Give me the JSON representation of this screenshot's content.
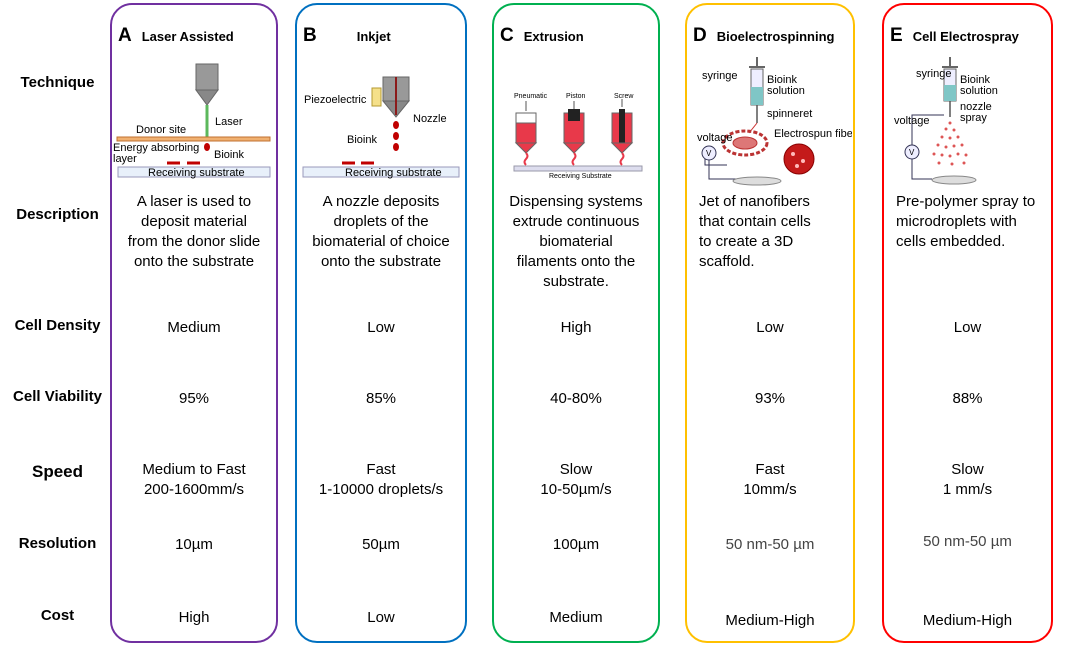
{
  "row_labels": [
    "Technique",
    "Description",
    "Cell Density",
    "Cell Viability",
    "Speed",
    "Resolution",
    "Cost"
  ],
  "columns": [
    {
      "letter": "A",
      "title": "Laser Assisted",
      "border_color": "#7030a0",
      "illustration": [
        "Donor site",
        "Laser",
        "Energy absorbing",
        "layer",
        "Bioink",
        "Receiving substrate"
      ],
      "description": [
        "A laser is used to",
        "deposit material",
        "from the donor slide",
        "onto the substrate"
      ],
      "cell_density": "Medium",
      "cell_viability": "95%",
      "speed": [
        "Medium to Fast",
        "200-1600mm/s"
      ],
      "resolution": "10µm",
      "cost": "High"
    },
    {
      "letter": "B",
      "title": "Inkjet",
      "border_color": "#0070c0",
      "illustration": [
        "Piezoelectric",
        "Nozzle",
        "Bioink",
        "Receiving substrate"
      ],
      "description": [
        "A nozzle deposits",
        "droplets of the",
        "biomaterial of choice",
        "onto the substrate"
      ],
      "cell_density": "Low",
      "cell_viability": "85%",
      "speed": [
        "Fast",
        "1-10000 droplets/s"
      ],
      "resolution": "50µm",
      "cost": "Low"
    },
    {
      "letter": "C",
      "title": "Extrusion",
      "border_color": "#00b050",
      "illustration": [
        "Pneumatic",
        "Piston",
        "Screw",
        "Receiving Substrate"
      ],
      "description": [
        "Dispensing systems",
        "extrude continuous",
        "biomaterial",
        "filaments  onto the",
        "substrate."
      ],
      "cell_density": "High",
      "cell_viability": "40-80%",
      "speed": [
        "Slow",
        "10-50µm/s"
      ],
      "resolution": "100µm",
      "cost": "Medium"
    },
    {
      "letter": "D",
      "title": "Bioelectrospinning",
      "border_color": "#ffc000",
      "illustration": [
        "syringe",
        "Bioink",
        "solution",
        "spinneret",
        "voltage",
        "Electrospun fiber",
        "V"
      ],
      "description": [
        "Jet of nanofibers",
        "that contain cells",
        "to create a 3D",
        "scaffold."
      ],
      "cell_density": "Low",
      "cell_viability": "93%",
      "speed": [
        "Fast",
        "10mm/s"
      ],
      "resolution": "50 nm-50 µm",
      "cost": "Medium-High"
    },
    {
      "letter": "E",
      "title": "Cell Electrospray",
      "border_color": "#ff0000",
      "illustration": [
        "syringe",
        "Bioink",
        "solution",
        "voltage",
        "nozzle",
        "spray",
        "V"
      ],
      "description": [
        "Pre-polymer spray to",
        "microdroplets with",
        "cells embedded."
      ],
      "cell_density": "Low",
      "cell_viability": "88%",
      "speed": [
        "Slow",
        "1 mm/s"
      ],
      "resolution": "50 nm-50 µm",
      "cost": "Medium-High"
    }
  ]
}
